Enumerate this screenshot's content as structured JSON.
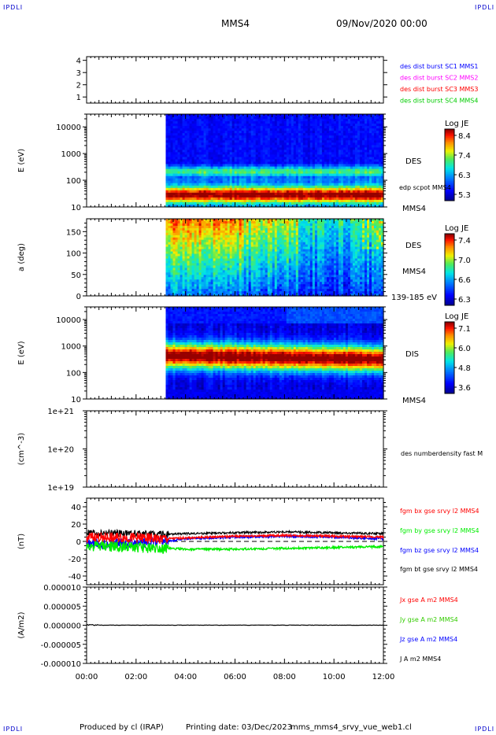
{
  "corner_mark": "IPDLI",
  "header": {
    "spacecraft": "MMS4",
    "datetime": "09/Nov/2020 00:00"
  },
  "footer": {
    "producer": "Produced by cl (IRAP)",
    "printing": "Printing date: 03/Dec/2023",
    "file": "mms_mms4_srvy_vue_web1.cl"
  },
  "chart_data": [
    {
      "type": "line",
      "ylabel": "",
      "ylim": [
        0.5,
        4.3
      ],
      "yticks": [
        "1",
        "2",
        "3",
        "4"
      ],
      "legend": [
        {
          "name": "des dist burst SC1 MMS1",
          "color": "#0000ff"
        },
        {
          "name": "des dist burst SC2 MMS2",
          "color": "#ff00ff"
        },
        {
          "name": "des dist burst SC3 MMS3",
          "color": "#ff0000"
        },
        {
          "name": "des dist burst SC4 MMS4",
          "color": "#00cc00"
        }
      ],
      "series": []
    },
    {
      "type": "heatmap",
      "ylabel": "E (eV)",
      "scale": "log",
      "ylim": [
        10,
        30000
      ],
      "yticks": [
        "10",
        "100",
        "1000",
        "10000"
      ],
      "data_start": "03:12",
      "instrument": "DES",
      "sublabel": "MMS4",
      "overlay": "edp scpot MMS4",
      "colorbar": {
        "title": "Log JE",
        "ticks": [
          "8.4",
          "7.4",
          "6.3",
          "5.3"
        ]
      }
    },
    {
      "type": "heatmap",
      "ylabel": "a (deg)",
      "ylim": [
        0,
        180
      ],
      "yticks": [
        "0",
        "50",
        "100",
        "150"
      ],
      "data_start": "03:12",
      "instrument": "DES",
      "sublabel": "MMS4",
      "energy_range": "139-185 eV",
      "colorbar": {
        "title": "Log JE",
        "ticks": [
          "7.4",
          "7.0",
          "6.6",
          "6.3"
        ]
      }
    },
    {
      "type": "heatmap",
      "ylabel": "E (eV)",
      "scale": "log",
      "ylim": [
        10,
        30000
      ],
      "yticks": [
        "10",
        "100",
        "1000",
        "10000"
      ],
      "data_start": "03:12",
      "instrument": "DIS",
      "sublabel": "MMS4",
      "colorbar": {
        "title": "Log JE",
        "ticks": [
          "7.1",
          "6.0",
          "4.8",
          "3.6"
        ]
      }
    },
    {
      "type": "line",
      "ylabel": "(cm^-3)",
      "scale": "log",
      "yticks": [
        "1e+19",
        "1e+20",
        "1e+21"
      ],
      "legend": [
        {
          "name": "des numberdensity fast M",
          "color": "#000000"
        }
      ],
      "series": []
    },
    {
      "type": "line",
      "ylabel": "(nT)",
      "ylim": [
        -50,
        50
      ],
      "yticks": [
        "-40",
        "-20",
        "0",
        "20",
        "40"
      ],
      "x": [
        "00:00",
        "02:00",
        "03:12",
        "04:00",
        "06:00",
        "08:00",
        "10:00",
        "12:00"
      ],
      "series": [
        {
          "name": "fgm bx gse srvy l2 MMS4",
          "color": "#ff0000",
          "values": [
            5,
            4,
            3,
            4,
            6,
            7,
            6,
            5
          ]
        },
        {
          "name": "fgm by gse srvy l2 MMS4",
          "color": "#00ee00",
          "values": [
            -5,
            -7,
            -8,
            -9,
            -9,
            -8,
            -7,
            -6
          ]
        },
        {
          "name": "fgm bz gse srvy l2 MMS4",
          "color": "#0000ff",
          "values": [
            -3,
            -2,
            0,
            3,
            5,
            6,
            5,
            3
          ]
        },
        {
          "name": "fgm bt gse srvy l2 MMS4",
          "color": "#000000",
          "values": [
            10,
            9,
            8,
            9,
            10,
            11,
            10,
            9
          ]
        }
      ]
    },
    {
      "type": "line",
      "ylabel": "(A/m2)",
      "ylim": [
        -1e-05,
        1e-05
      ],
      "yticks": [
        "-0.000010",
        "-0.000005",
        "0.000000",
        "0.000005",
        "0.000010"
      ],
      "legend": [
        {
          "name": "Jx gse A m2 MMS4",
          "color": "#ff0000"
        },
        {
          "name": "Jy gse A m2 MMS4",
          "color": "#33cc00"
        },
        {
          "name": "Jz gse A m2 MMS4",
          "color": "#0000ff"
        },
        {
          "name": "J A m2 MMS4",
          "color": "#000000"
        }
      ],
      "series": [
        {
          "name": "J A m2 MMS4",
          "color": "#000000",
          "values": [
            2e-07,
            1e-07,
            0.0,
            0.0,
            0.0,
            0.0,
            0.0,
            0.0
          ]
        }
      ]
    }
  ],
  "time_axis": {
    "ticks": [
      "00:00",
      "02:00",
      "04:00",
      "06:00",
      "08:00",
      "10:00",
      "12:00"
    ],
    "range_hours": [
      0,
      12
    ]
  }
}
